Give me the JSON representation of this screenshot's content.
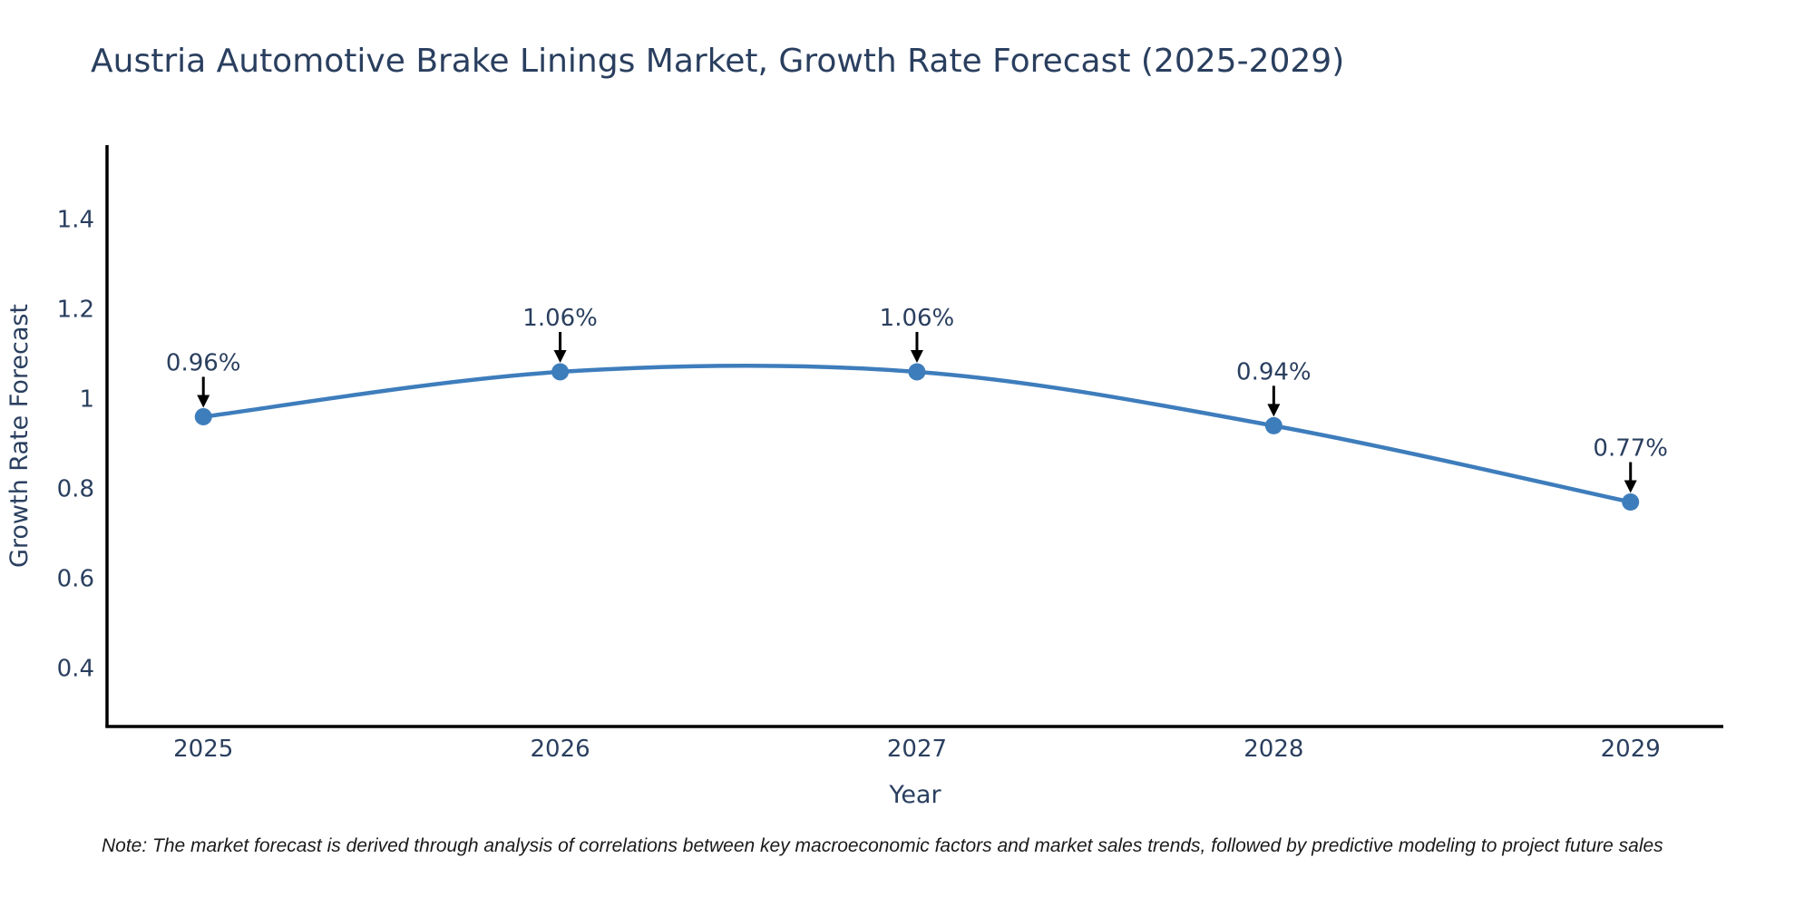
{
  "title": "Austria Automotive Brake Linings Market, Growth Rate Forecast (2025-2029)",
  "note": "Note: The market forecast is derived through analysis of correlations between key macroeconomic factors and market sales trends, followed by predictive modeling to project future sales",
  "chart_data": {
    "type": "line",
    "title": "Austria Automotive Brake Linings Market, Growth Rate Forecast (2025-2029)",
    "xlabel": "Year",
    "ylabel": "Growth Rate Forecast",
    "x": [
      2025,
      2026,
      2027,
      2028,
      2029
    ],
    "series": [
      {
        "name": "Growth Rate Forecast",
        "values": [
          0.96,
          1.06,
          1.06,
          0.94,
          0.77
        ]
      }
    ],
    "point_labels": [
      "0.96%",
      "1.06%",
      "1.06%",
      "0.94%",
      "0.77%"
    ],
    "xtick_labels": [
      "2025",
      "2026",
      "2027",
      "2028",
      "2029"
    ],
    "yticks": [
      0.4,
      0.6,
      0.8,
      1,
      1.2,
      1.4
    ],
    "ytick_labels": [
      "0.4",
      "0.6",
      "0.8",
      "1",
      "1.2",
      "1.4"
    ],
    "xlim": [
      2024.73,
      2029.26
    ],
    "ylim": [
      0.27,
      1.565
    ],
    "grid": false,
    "line_shape": "spline",
    "legend": "none",
    "colors": {
      "line": "#3E7DBC",
      "marker": "#3E7DBC",
      "axis": "#000000",
      "text": "#2a3f5f",
      "annotation_text": "#2a3f5f",
      "annotation_arrow": "#000000",
      "background": "#ffffff"
    }
  }
}
